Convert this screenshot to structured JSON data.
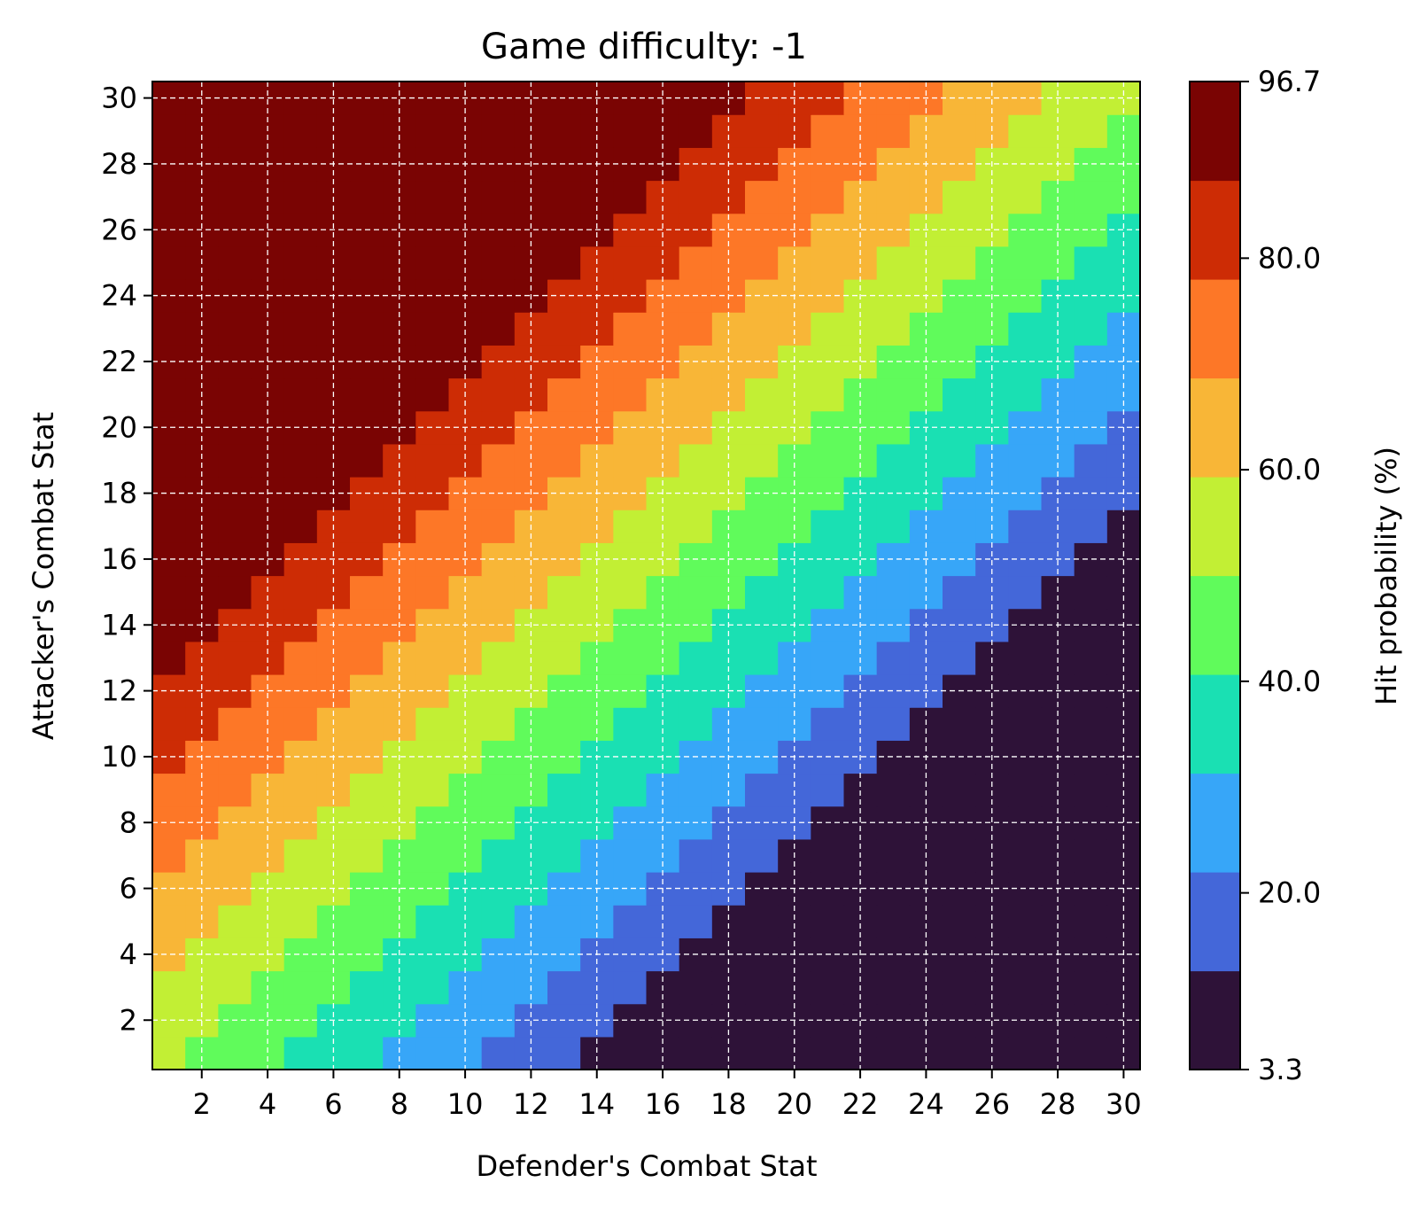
{
  "chart_data": {
    "type": "heatmap",
    "title": "Game difficulty: -1",
    "xlabel": "Defender's Combat Stat",
    "ylabel": "Attacker's Combat Stat",
    "x_range": [
      1,
      30
    ],
    "y_range": [
      1,
      30
    ],
    "x_ticks": [
      "2",
      "4",
      "6",
      "8",
      "10",
      "12",
      "14",
      "16",
      "18",
      "20",
      "22",
      "24",
      "26",
      "28",
      "30"
    ],
    "y_ticks": [
      "2",
      "4",
      "6",
      "8",
      "10",
      "12",
      "14",
      "16",
      "18",
      "20",
      "22",
      "24",
      "26",
      "28",
      "30"
    ],
    "grid": true,
    "colorbar": {
      "label": "Hit probability (%)",
      "min": 3.3,
      "max": 96.7,
      "tick_values": [
        3.3,
        20.0,
        40.0,
        60.0,
        80.0,
        96.7
      ],
      "tick_labels": [
        "3.3",
        "20.0",
        "40.0",
        "60.0",
        "80.0",
        "96.7"
      ],
      "levels": 10,
      "colors": [
        "#2e1238",
        "#4467d9",
        "#37a6f8",
        "#1ae0b3",
        "#60fb5b",
        "#c2ef34",
        "#f8b637",
        "#fd7727",
        "#cd2c05",
        "#7a0403"
      ]
    },
    "value_model": {
      "description_values": "Hit probability (%) per cell, computed as clip(52 + 3.2*(attacker - defender), 3.3, 96.7)",
      "base": 52,
      "slope": 3.2,
      "min": 3.3,
      "max": 96.7
    }
  }
}
